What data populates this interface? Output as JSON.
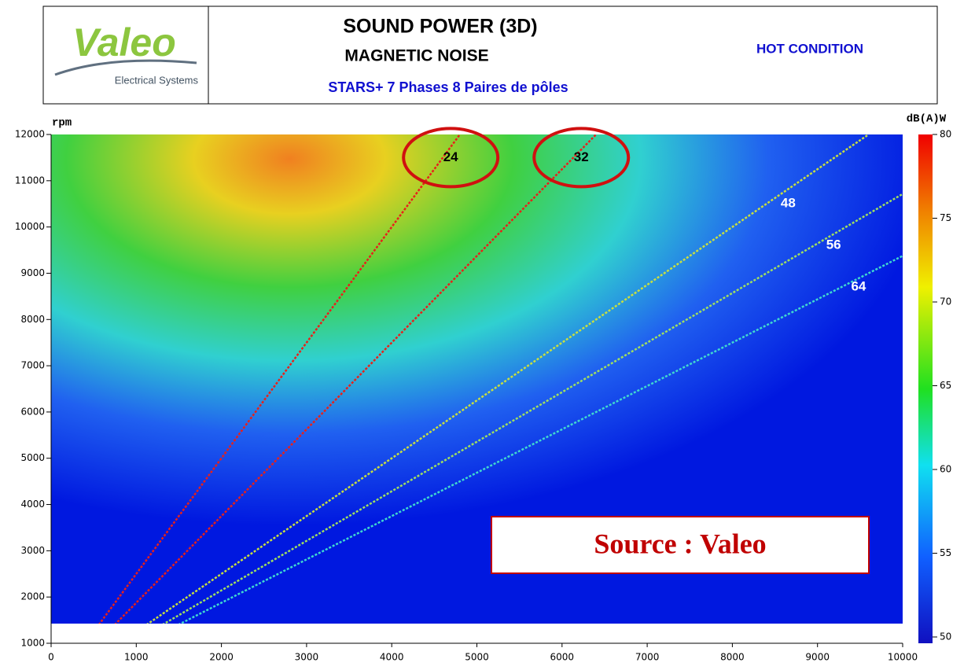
{
  "header": {
    "logo": "Valeo",
    "logo_subtitle": "Electrical Systems",
    "title": "SOUND POWER (3D)",
    "subtitle": "MAGNETIC NOISE",
    "description": "STARS+ 7 Phases 8 Paires de pôles",
    "condition": "HOT CONDITION"
  },
  "chart_data": {
    "type": "campbell",
    "y_label": "rpm",
    "colorbar_label": "dB(A)W",
    "xlim": [
      0,
      10000
    ],
    "xticks": [
      0,
      1000,
      2000,
      3000,
      4000,
      5000,
      6000,
      7000,
      8000,
      9000,
      10000
    ],
    "ylim": [
      1000,
      12000
    ],
    "yticks": [
      1000,
      2000,
      3000,
      4000,
      5000,
      6000,
      7000,
      8000,
      9000,
      10000,
      11000,
      12000
    ],
    "clim": [
      50,
      80
    ],
    "cticks": [
      50,
      55,
      60,
      65,
      70,
      75,
      80
    ],
    "orders": [
      {
        "name": "24",
        "value": 24,
        "color": "#e8201a",
        "circled": true
      },
      {
        "name": "32",
        "value": 32,
        "color": "#e8201a",
        "circled": true
      },
      {
        "name": "48",
        "value": 48,
        "color": "#c8e040",
        "circled": false
      },
      {
        "name": "56",
        "value": 56,
        "color": "#a0e060",
        "circled": false
      },
      {
        "name": "64",
        "value": 64,
        "color": "#40d8d0",
        "circled": false
      }
    ],
    "annotation": "Source : Valeo"
  }
}
